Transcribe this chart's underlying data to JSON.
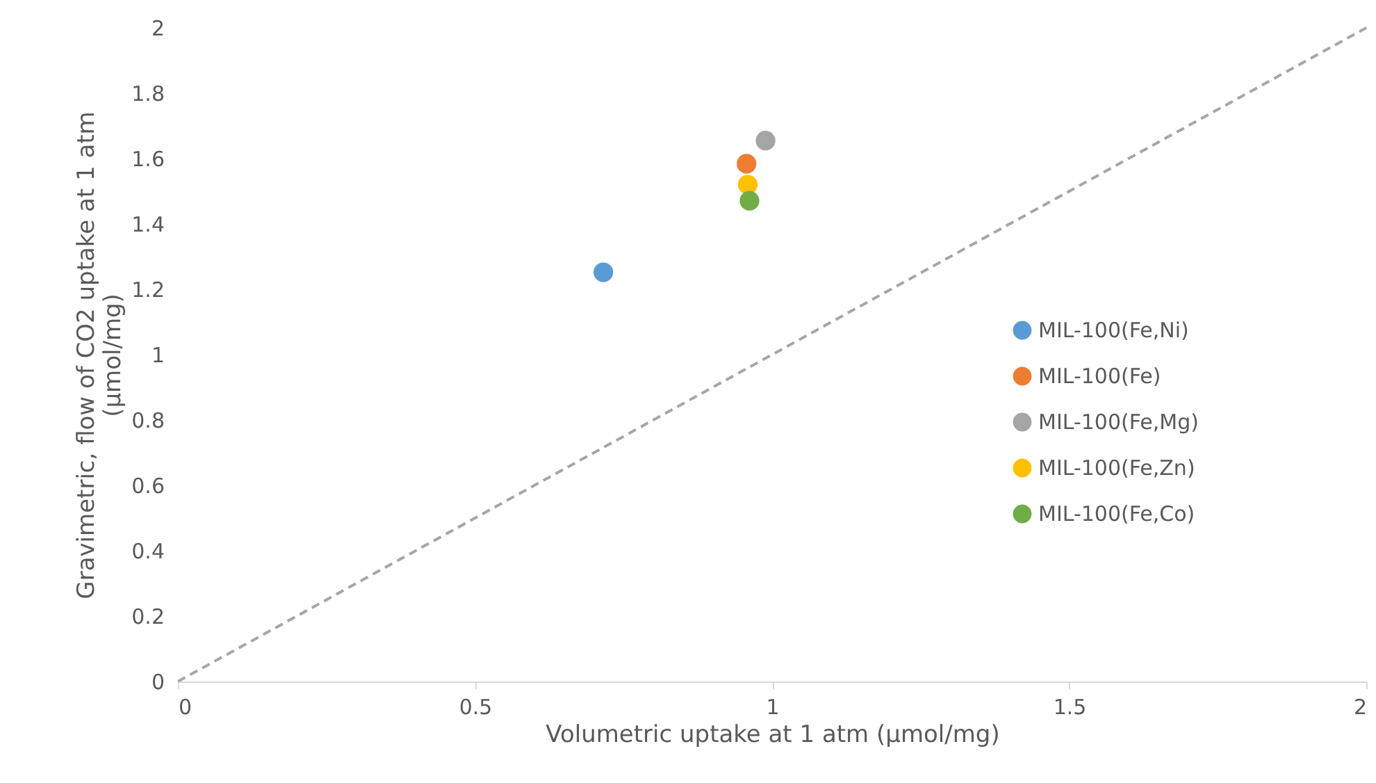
{
  "chart_data": {
    "type": "scatter",
    "xlabel": "Volumetric uptake at 1 atm (µmol/mg)",
    "ylabel": "Gravimetric, flow of CO2 uptake at 1 atm (µmol/mg)",
    "series": [
      {
        "name": "MIL-100(Fe,Ni)",
        "color": "#5b9bd5",
        "x": [
          0.716
        ],
        "values": [
          1.252
        ]
      },
      {
        "name": "MIL-100(Fe)",
        "color": "#ed7d31",
        "x": [
          0.957
        ],
        "values": [
          1.584
        ]
      },
      {
        "name": "MIL-100(Fe,Mg)",
        "color": "#a5a5a5",
        "x": [
          0.989
        ],
        "values": [
          1.655
        ]
      },
      {
        "name": "MIL-100(Fe,Zn)",
        "color": "#ffc000",
        "x": [
          0.959
        ],
        "values": [
          1.52
        ]
      },
      {
        "name": "MIL-100(Fe,Co)",
        "color": "#70ad47",
        "x": [
          0.962
        ],
        "values": [
          1.471
        ]
      },
      {
        "type": "line",
        "color": "#a6a6a6",
        "marker": "none",
        "x": [
          0,
          2
        ],
        "values": [
          0,
          2
        ]
      }
    ],
    "xlim": [
      0,
      2
    ],
    "xticks": [
      0,
      0.5,
      1,
      1.5,
      2
    ],
    "ylim": [
      0,
      2
    ],
    "yticks": [
      0,
      0.2,
      0.4,
      0.6,
      0.8,
      1,
      1.2,
      1.4,
      1.6,
      1.8,
      2
    ],
    "grid": false,
    "legend": "right",
    "marker": "circle",
    "line_style": "dashed"
  }
}
